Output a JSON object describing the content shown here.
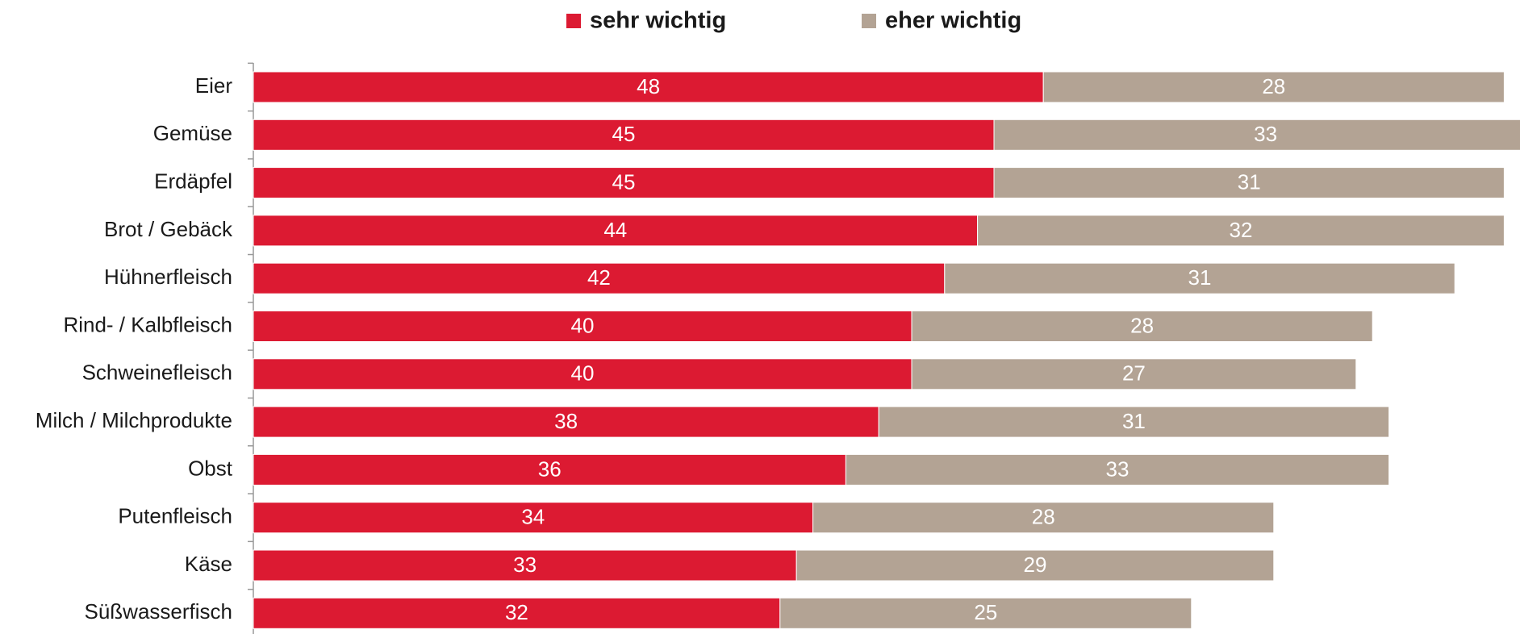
{
  "chart_data": {
    "type": "stacked-bar-horizontal",
    "categories": [
      "Eier",
      "Gemüse",
      "Erdäpfel",
      "Brot / Gebäck",
      "Hühnerfleisch",
      "Rind- / Kalbfleisch",
      "Schweinefleisch",
      "Milch / Milchprodukte",
      "Obst",
      "Putenfleisch",
      "Käse",
      "Süßwasserfisch"
    ],
    "series": [
      {
        "name": "sehr wichtig",
        "color": "#dc1a32",
        "values": [
          48,
          45,
          45,
          44,
          42,
          40,
          40,
          38,
          36,
          34,
          33,
          32
        ]
      },
      {
        "name": "eher wichtig",
        "color": "#b3a394",
        "values": [
          28,
          33,
          31,
          32,
          31,
          28,
          27,
          31,
          33,
          28,
          29,
          25
        ]
      }
    ]
  }
}
